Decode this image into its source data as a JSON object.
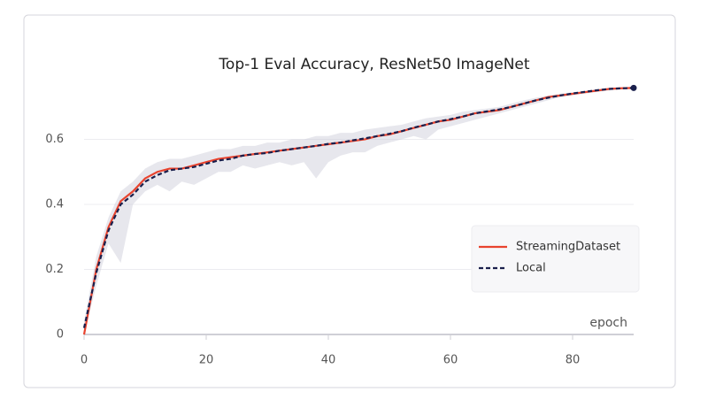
{
  "chart_data": {
    "type": "line",
    "title": "Top-1 Eval Accuracy, ResNet50 ImageNet",
    "xlabel": "epoch",
    "x": [
      0,
      2,
      4,
      6,
      8,
      10,
      12,
      14,
      16,
      18,
      20,
      22,
      24,
      26,
      28,
      30,
      32,
      34,
      36,
      38,
      40,
      42,
      44,
      46,
      48,
      50,
      52,
      54,
      56,
      58,
      60,
      62,
      64,
      66,
      68,
      70,
      72,
      74,
      76,
      78,
      80,
      82,
      84,
      86,
      88,
      90
    ],
    "series": [
      {
        "name": "StreamingDataset",
        "color": "#e8432e",
        "dash": false,
        "values": [
          0.0,
          0.2,
          0.33,
          0.41,
          0.44,
          0.48,
          0.5,
          0.51,
          0.51,
          0.52,
          0.53,
          0.54,
          0.545,
          0.55,
          0.555,
          0.56,
          0.565,
          0.57,
          0.575,
          0.58,
          0.585,
          0.59,
          0.595,
          0.6,
          0.61,
          0.615,
          0.625,
          0.635,
          0.645,
          0.655,
          0.66,
          0.67,
          0.68,
          0.685,
          0.69,
          0.7,
          0.71,
          0.72,
          0.73,
          0.735,
          0.74,
          0.745,
          0.75,
          0.755,
          0.757,
          0.758
        ]
      },
      {
        "name": "Local",
        "color": "#1a1f4c",
        "dash": true,
        "values": [
          0.02,
          0.19,
          0.32,
          0.4,
          0.43,
          0.47,
          0.49,
          0.505,
          0.51,
          0.515,
          0.525,
          0.535,
          0.54,
          0.55,
          0.555,
          0.558,
          0.565,
          0.57,
          0.575,
          0.58,
          0.586,
          0.59,
          0.597,
          0.603,
          0.61,
          0.617,
          0.625,
          0.636,
          0.645,
          0.655,
          0.662,
          0.67,
          0.68,
          0.686,
          0.692,
          0.7,
          0.71,
          0.72,
          0.728,
          0.735,
          0.741,
          0.746,
          0.751,
          0.755,
          0.757,
          0.758
        ]
      }
    ],
    "band": {
      "color": "#c9c9d6",
      "lower": [
        0.0,
        0.15,
        0.28,
        0.22,
        0.4,
        0.44,
        0.46,
        0.44,
        0.47,
        0.46,
        0.48,
        0.5,
        0.5,
        0.52,
        0.51,
        0.52,
        0.53,
        0.52,
        0.53,
        0.48,
        0.53,
        0.55,
        0.56,
        0.56,
        0.58,
        0.59,
        0.6,
        0.61,
        0.6,
        0.63,
        0.64,
        0.65,
        0.66,
        0.67,
        0.68,
        0.69,
        0.7,
        0.71,
        0.72,
        0.73,
        0.735,
        0.74,
        0.746,
        0.75,
        0.755,
        0.756
      ],
      "upper": [
        0.04,
        0.24,
        0.36,
        0.44,
        0.47,
        0.51,
        0.53,
        0.54,
        0.54,
        0.55,
        0.56,
        0.57,
        0.57,
        0.58,
        0.58,
        0.59,
        0.59,
        0.6,
        0.6,
        0.61,
        0.61,
        0.62,
        0.62,
        0.63,
        0.635,
        0.64,
        0.645,
        0.655,
        0.665,
        0.67,
        0.675,
        0.685,
        0.69,
        0.695,
        0.7,
        0.71,
        0.72,
        0.728,
        0.735,
        0.74,
        0.745,
        0.75,
        0.754,
        0.758,
        0.76,
        0.76
      ]
    },
    "xlim": [
      0,
      90
    ],
    "ylim": [
      0,
      0.77
    ],
    "xticks": [
      0,
      20,
      40,
      60,
      80
    ],
    "yticks": [
      0,
      0.2,
      0.4,
      0.6
    ],
    "grid": true,
    "legend": "lower-right"
  }
}
